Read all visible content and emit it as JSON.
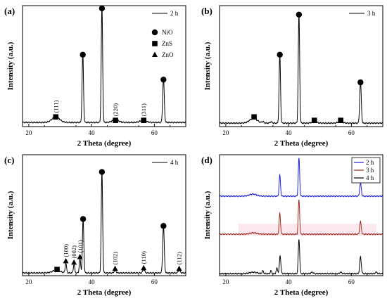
{
  "chart_data": [
    {
      "panel": "(a)",
      "type": "line",
      "xlabel": "2 Theta (degree)",
      "ylabel": "Intensity (a.u.)",
      "xlim": [
        18,
        70
      ],
      "xticks": [
        20,
        40,
        60
      ],
      "series": [
        {
          "name": "2 h",
          "color": "#000000",
          "baseline": 6,
          "peaks": [
            {
              "x": 28.6,
              "h": 8,
              "w": 1.2
            },
            {
              "x": 37.2,
              "h": 100,
              "w": 0.22
            },
            {
              "x": 43.3,
              "h": 168,
              "w": 0.22
            },
            {
              "x": 47.6,
              "h": 4,
              "w": 1.0
            },
            {
              "x": 56.4,
              "h": 3,
              "w": 1.0
            },
            {
              "x": 62.9,
              "h": 64,
              "w": 0.25
            }
          ]
        }
      ],
      "ymax": 175,
      "markers": [
        {
          "type": "NiO",
          "x": 37.2,
          "y": 104
        },
        {
          "type": "NiO",
          "x": 43.3,
          "y": 171
        },
        {
          "type": "NiO",
          "x": 62.9,
          "y": 68
        },
        {
          "type": "ZnS",
          "x": 28.6,
          "y": 14
        },
        {
          "type": "ZnS",
          "x": 47.6,
          "y": 9
        },
        {
          "type": "ZnS",
          "x": 56.6,
          "y": 9
        }
      ],
      "annotations": [
        {
          "text": "(111)",
          "x": 28.6,
          "y": 20
        },
        {
          "text": "(220)",
          "x": 47.6,
          "y": 15
        },
        {
          "text": "(311)",
          "x": 56.6,
          "y": 15
        }
      ],
      "legend": {
        "entries": [
          {
            "label": "2 h",
            "kind": "line"
          }
        ],
        "position": "top-right"
      },
      "phase_legend": [
        {
          "label": "NiO",
          "kind": "circle"
        },
        {
          "label": "ZnS",
          "kind": "square"
        },
        {
          "label": "ZnO",
          "kind": "triangle"
        }
      ]
    },
    {
      "panel": "(b)",
      "type": "line",
      "xlabel": "2 Theta (degree)",
      "ylabel": "Intensity (a.u.)",
      "xlim": [
        18,
        70
      ],
      "xticks": [
        20,
        40,
        60
      ],
      "series": [
        {
          "name": "3 h",
          "color": "#000000",
          "baseline": 5,
          "peaks": [
            {
              "x": 28.8,
              "h": 7,
              "w": 1.2
            },
            {
              "x": 31.8,
              "h": 2,
              "w": 0.3
            },
            {
              "x": 34.4,
              "h": 2,
              "w": 0.3
            },
            {
              "x": 37.2,
              "h": 100,
              "w": 0.22
            },
            {
              "x": 43.3,
              "h": 158,
              "w": 0.22
            },
            {
              "x": 48.2,
              "h": 2,
              "w": 0.8
            },
            {
              "x": 56.5,
              "h": 2,
              "w": 0.8
            },
            {
              "x": 62.9,
              "h": 60,
              "w": 0.25
            }
          ]
        }
      ],
      "ymax": 175,
      "markers": [
        {
          "type": "NiO",
          "x": 37.2,
          "y": 104
        },
        {
          "type": "NiO",
          "x": 43.3,
          "y": 162
        },
        {
          "type": "NiO",
          "x": 62.9,
          "y": 64
        },
        {
          "type": "ZnS",
          "x": 29.0,
          "y": 14
        },
        {
          "type": "ZnS",
          "x": 48.2,
          "y": 9
        },
        {
          "type": "ZnS",
          "x": 56.6,
          "y": 9
        }
      ],
      "annotations": [],
      "legend": {
        "entries": [
          {
            "label": "3 h",
            "kind": "line"
          }
        ],
        "position": "top-right"
      }
    },
    {
      "panel": "(c)",
      "type": "line",
      "xlabel": "2 Theta (degree)",
      "ylabel": "Intensity (a.u.)",
      "xlim": [
        18,
        70
      ],
      "xticks": [
        20,
        40,
        60
      ],
      "series": [
        {
          "name": "4 h",
          "color": "#000000",
          "baseline": 4,
          "peaks": [
            {
              "x": 28.8,
              "h": 4,
              "w": 1.2
            },
            {
              "x": 31.8,
              "h": 14,
              "w": 0.22
            },
            {
              "x": 34.4,
              "h": 12,
              "w": 0.22
            },
            {
              "x": 36.3,
              "h": 20,
              "w": 0.22
            },
            {
              "x": 37.3,
              "h": 78,
              "w": 0.22
            },
            {
              "x": 43.3,
              "h": 146,
              "w": 0.22
            },
            {
              "x": 47.5,
              "h": 4,
              "w": 0.3
            },
            {
              "x": 56.6,
              "h": 5,
              "w": 0.3
            },
            {
              "x": 62.9,
              "h": 68,
              "w": 0.25
            },
            {
              "x": 67.9,
              "h": 4,
              "w": 0.3
            }
          ]
        }
      ],
      "ymax": 175,
      "markers": [
        {
          "type": "NiO",
          "x": 37.3,
          "y": 82
        },
        {
          "type": "NiO",
          "x": 43.3,
          "y": 150
        },
        {
          "type": "NiO",
          "x": 62.9,
          "y": 72
        },
        {
          "type": "ZnS",
          "x": 29.0,
          "y": 9
        },
        {
          "type": "ZnO",
          "x": 31.8,
          "y": 21
        },
        {
          "type": "ZnO",
          "x": 34.4,
          "y": 19
        },
        {
          "type": "ZnO",
          "x": 36.3,
          "y": 27
        },
        {
          "type": "ZnO",
          "x": 47.5,
          "y": 10
        },
        {
          "type": "ZnO",
          "x": 56.6,
          "y": 11
        },
        {
          "type": "ZnO",
          "x": 67.9,
          "y": 10
        }
      ],
      "annotations": [
        {
          "text": "(100)",
          "x": 31.8,
          "y": 27
        },
        {
          "text": "(002)",
          "x": 34.4,
          "y": 25
        },
        {
          "text": "(101)",
          "x": 36.4,
          "y": 33
        },
        {
          "text": "(102)",
          "x": 47.5,
          "y": 16
        },
        {
          "text": "(110)",
          "x": 56.6,
          "y": 17
        },
        {
          "text": "(112)",
          "x": 67.9,
          "y": 16
        }
      ],
      "legend": {
        "entries": [
          {
            "label": "4 h",
            "kind": "line"
          }
        ],
        "position": "top-right"
      }
    },
    {
      "panel": "(d)",
      "type": "line",
      "xlabel": "2 Theta (degree)",
      "ylabel": "Intensity (a.u.)",
      "xlim": [
        18,
        70
      ],
      "xticks": [
        20,
        40,
        60
      ],
      "ymax": 175,
      "series": [
        {
          "name": "2 h",
          "color": "#1f1fd6",
          "baseline": 115,
          "peaks": [
            {
              "x": 28.6,
              "h": 3,
              "w": 1.2
            },
            {
              "x": 37.2,
              "h": 30,
              "w": 0.22
            },
            {
              "x": 43.3,
              "h": 55,
              "w": 0.22
            },
            {
              "x": 62.9,
              "h": 19,
              "w": 0.25
            }
          ]
        },
        {
          "name": "3 h",
          "color": "#9c2a1e",
          "baseline": 60,
          "peaks": [
            {
              "x": 28.8,
              "h": 2,
              "w": 1.2
            },
            {
              "x": 37.2,
              "h": 30,
              "w": 0.22
            },
            {
              "x": 43.3,
              "h": 50,
              "w": 0.22
            },
            {
              "x": 62.9,
              "h": 18,
              "w": 0.25
            }
          ]
        },
        {
          "name": "4 h",
          "color": "#000000",
          "baseline": 3,
          "peaks": [
            {
              "x": 28.8,
              "h": 2,
              "w": 1.2
            },
            {
              "x": 31.8,
              "h": 4,
              "w": 0.22
            },
            {
              "x": 34.4,
              "h": 4,
              "w": 0.22
            },
            {
              "x": 36.3,
              "h": 8,
              "w": 0.22
            },
            {
              "x": 37.3,
              "h": 26,
              "w": 0.22
            },
            {
              "x": 43.3,
              "h": 50,
              "w": 0.22
            },
            {
              "x": 47.5,
              "h": 2,
              "w": 0.3
            },
            {
              "x": 56.6,
              "h": 2,
              "w": 0.3
            },
            {
              "x": 62.9,
              "h": 24,
              "w": 0.25
            },
            {
              "x": 67.9,
              "h": 2,
              "w": 0.3
            }
          ]
        }
      ],
      "markers": [],
      "annotations": [],
      "legend": {
        "entries": [
          {
            "label": "2 h",
            "kind": "line",
            "color": "#1f1fd6"
          },
          {
            "label": "3 h",
            "kind": "line",
            "color": "#9c2a1e"
          },
          {
            "label": "4 h",
            "kind": "line",
            "color": "#000000"
          }
        ],
        "position": "top-right"
      }
    }
  ]
}
